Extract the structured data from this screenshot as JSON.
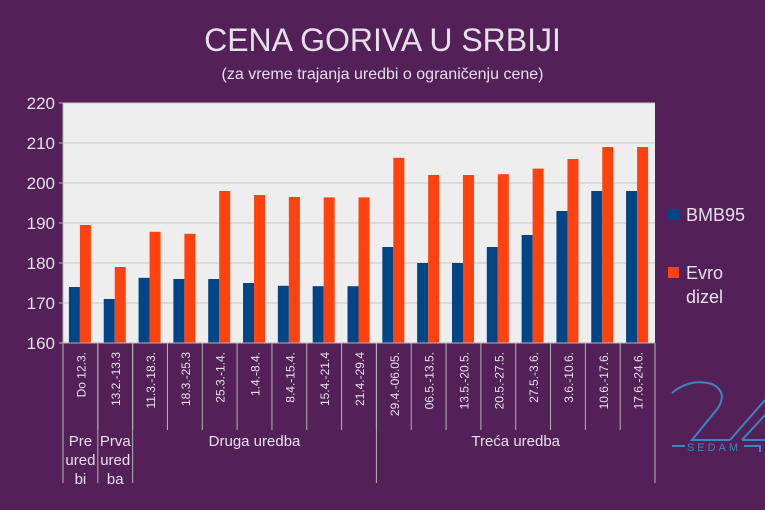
{
  "chart_data": {
    "type": "bar",
    "title": "CENA GORIVA U SRBIJI",
    "subtitle": "(za vreme trajanja uredbi o ograničenju cene)",
    "categories": [
      "Do 12.3.",
      "13.2.-13.3",
      "11.3.-18.3.",
      "18.3.-25.3",
      "25.3.-1.4.",
      "1.4.-8.4.",
      "8.4.-15.4.",
      "15.4.-21.4",
      "21.4.-29.4",
      "29.4.-06.05.",
      "06.5.-13.5.",
      "13.5.-20.5.",
      "20.5.-27.5.",
      "27.5.-3.6.",
      "3.6.-10.6.",
      "10.6.-17.6.",
      "17.6.-24.6."
    ],
    "groups": [
      {
        "label": "Pre uredbi",
        "lines": [
          "Pre",
          "ured",
          "bi"
        ],
        "span": 1
      },
      {
        "label": "Prva uredba",
        "lines": [
          "Prva",
          "ured",
          "ba"
        ],
        "span": 1
      },
      {
        "label": "Druga uredba",
        "lines": [
          "Druga uredba"
        ],
        "span": 7
      },
      {
        "label": "Treća uredba",
        "lines": [
          "Treća uredba"
        ],
        "span": 8
      }
    ],
    "series": [
      {
        "name": "BMB95",
        "color": "#004586",
        "values": [
          174,
          171,
          176.3,
          176,
          176,
          175,
          174.3,
          174.2,
          174.2,
          184,
          180,
          180,
          184,
          187,
          193,
          198,
          198
        ]
      },
      {
        "name": "Evro dizel",
        "color": "#ff420e",
        "values": [
          189.5,
          179,
          187.8,
          187.3,
          198,
          197,
          196.5,
          196.4,
          196.4,
          206.3,
          202,
          202,
          202.2,
          203.6,
          206,
          209,
          209
        ]
      }
    ],
    "legend_lines": {
      "BMB95": [
        "BMB95"
      ],
      "Evro dizel": [
        "Evro",
        "dizel"
      ]
    },
    "ylim": [
      160,
      220
    ],
    "yticks": [
      160,
      170,
      180,
      190,
      200,
      210,
      220
    ],
    "grid": true,
    "legend": "right",
    "plot_background": "#eeeeee"
  },
  "logo": {
    "text": "SEDAM",
    "mark": "24",
    "color": "#3a86c0"
  }
}
